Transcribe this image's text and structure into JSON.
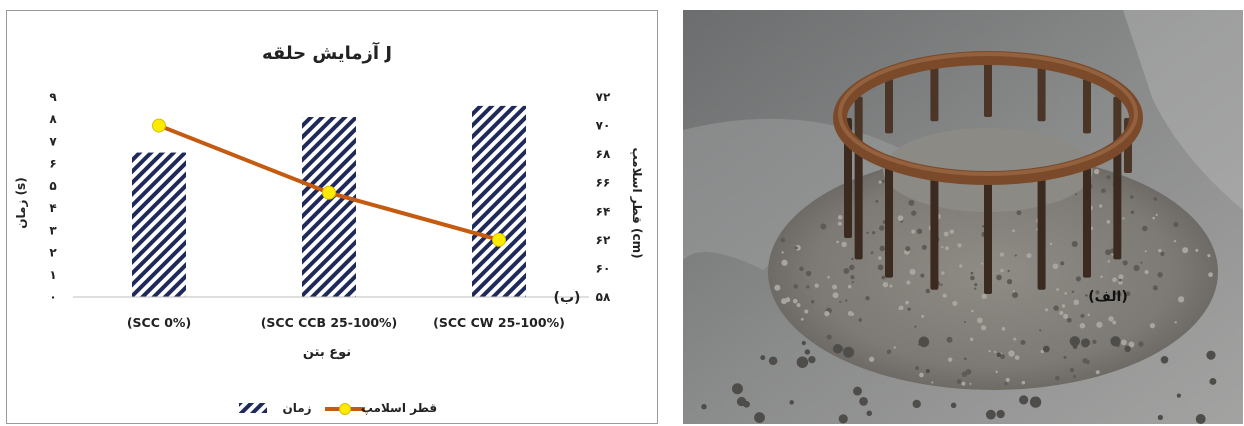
{
  "chart_data": {
    "type": "bar",
    "title": "آزمایش حلقه J",
    "xlabel": "نوع بتن",
    "ylabel_left": "زمان (s)",
    "ylabel_right": "قطر اسلامپ (cm)",
    "categories": [
      "(SCC 0%)",
      "(SCC CCB 25-100%)",
      "(SCC CW 25-100%)"
    ],
    "left_axis": {
      "min": 0,
      "max": 9,
      "ticks": [
        "۰",
        "۱",
        "۲",
        "۳",
        "۴",
        "۵",
        "۶",
        "۷",
        "۸",
        "۹"
      ]
    },
    "right_axis": {
      "min": 58,
      "max": 72,
      "ticks": [
        "۵۸",
        "۶۰",
        "۶۲",
        "۶۴",
        "۶۶",
        "۶۸",
        "۷۰",
        "۷۲"
      ]
    },
    "series": [
      {
        "name": "زمان",
        "type": "bar",
        "axis": "left",
        "values": [
          6.5,
          8.1,
          8.6
        ]
      },
      {
        "name": "قطر اسلامپ",
        "type": "line",
        "axis": "right",
        "values": [
          70,
          65.3,
          62
        ]
      }
    ],
    "legend_position": "bottom",
    "panel_label": "(ب)",
    "colors": {
      "bar": "#1f2a5a",
      "line": "#c55a11",
      "marker": "#ffeb00"
    }
  },
  "photo": {
    "panel_label": "(الف)",
    "subject": "J-ring test apparatus on spread concrete"
  }
}
